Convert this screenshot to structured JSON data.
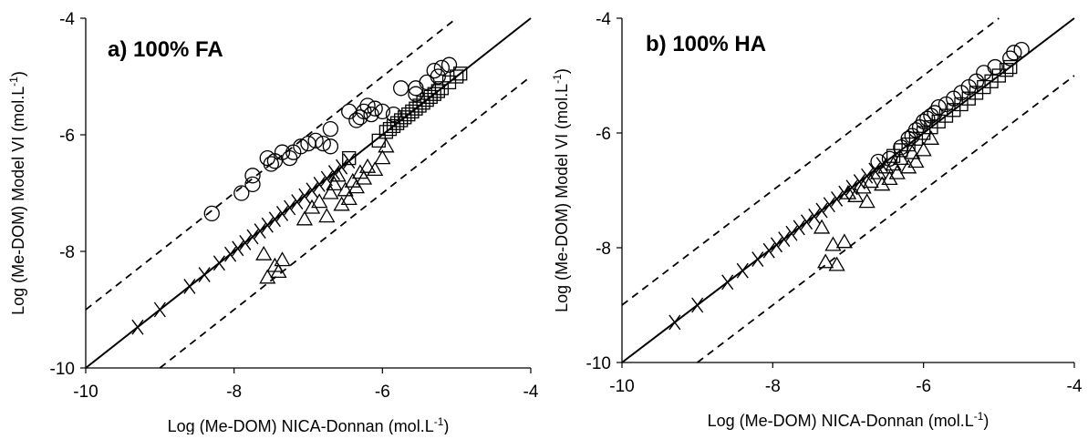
{
  "chart_data": [
    {
      "type": "scatter",
      "panel_label": "a) 100% FA",
      "xlabel": "Log (Me-DOM) NICA-Donnan (mol.L",
      "ylabel": "Log (Me-DOM) Model VI (mol.L",
      "unit_superscript": "-1",
      "unit_close": ")",
      "xlim": [
        -10,
        -4
      ],
      "ylim": [
        -10,
        -4
      ],
      "xticks": [
        -10,
        -8,
        -6,
        -4
      ],
      "yticks": [
        -10,
        -8,
        -6,
        -4
      ],
      "xtick_labels": [
        "-10",
        "-8",
        "-6",
        "-4"
      ],
      "ytick_labels": [
        "-10",
        "-8",
        "-6",
        "-4"
      ],
      "grid": false,
      "lines": [
        {
          "style": "solid",
          "x": [
            -10,
            -4
          ],
          "y": [
            -10,
            -4
          ]
        },
        {
          "style": "dashed",
          "x": [
            -10,
            -5
          ],
          "y": [
            -9,
            -4
          ]
        },
        {
          "style": "dashed",
          "x": [
            -9,
            -4
          ],
          "y": [
            -10,
            -5
          ]
        }
      ],
      "series": [
        {
          "marker": "circle",
          "points": [
            [
              -8.3,
              -7.35
            ],
            [
              -7.9,
              -7.0
            ],
            [
              -7.75,
              -6.85
            ],
            [
              -7.75,
              -6.7
            ],
            [
              -7.55,
              -6.4
            ],
            [
              -7.5,
              -6.5
            ],
            [
              -7.45,
              -6.45
            ],
            [
              -7.35,
              -6.3
            ],
            [
              -7.25,
              -6.4
            ],
            [
              -7.2,
              -6.3
            ],
            [
              -7.1,
              -6.2
            ],
            [
              -7.0,
              -6.15
            ],
            [
              -6.9,
              -6.1
            ],
            [
              -6.8,
              -6.15
            ],
            [
              -6.7,
              -6.2
            ],
            [
              -6.7,
              -5.9
            ],
            [
              -6.45,
              -5.6
            ],
            [
              -6.35,
              -5.75
            ],
            [
              -6.3,
              -5.7
            ],
            [
              -6.25,
              -5.6
            ],
            [
              -6.2,
              -5.5
            ],
            [
              -6.15,
              -5.65
            ],
            [
              -6.1,
              -5.55
            ],
            [
              -6.0,
              -5.6
            ],
            [
              -5.85,
              -5.65
            ],
            [
              -5.75,
              -5.2
            ],
            [
              -5.55,
              -5.3
            ],
            [
              -5.55,
              -5.2
            ],
            [
              -5.4,
              -5.1
            ],
            [
              -5.3,
              -4.9
            ],
            [
              -5.25,
              -5.0
            ],
            [
              -5.2,
              -4.85
            ],
            [
              -5.1,
              -4.8
            ]
          ]
        },
        {
          "marker": "square",
          "points": [
            [
              -6.45,
              -6.4
            ],
            [
              -6.05,
              -6.1
            ],
            [
              -5.95,
              -5.95
            ],
            [
              -5.9,
              -5.9
            ],
            [
              -5.85,
              -5.85
            ],
            [
              -5.8,
              -5.8
            ],
            [
              -5.75,
              -5.75
            ],
            [
              -5.7,
              -5.7
            ],
            [
              -5.65,
              -5.65
            ],
            [
              -5.6,
              -5.6
            ],
            [
              -5.55,
              -5.55
            ],
            [
              -5.5,
              -5.5
            ],
            [
              -5.45,
              -5.45
            ],
            [
              -5.4,
              -5.4
            ],
            [
              -5.35,
              -5.35
            ],
            [
              -5.3,
              -5.3
            ],
            [
              -5.25,
              -5.25
            ],
            [
              -5.2,
              -5.2
            ],
            [
              -5.1,
              -5.1
            ],
            [
              -5.0,
              -5.0
            ],
            [
              -4.95,
              -4.95
            ]
          ]
        },
        {
          "marker": "triangle",
          "points": [
            [
              -7.6,
              -8.05
            ],
            [
              -7.55,
              -8.45
            ],
            [
              -7.45,
              -8.25
            ],
            [
              -7.4,
              -8.35
            ],
            [
              -7.35,
              -8.15
            ],
            [
              -7.05,
              -7.45
            ],
            [
              -6.95,
              -7.25
            ],
            [
              -6.85,
              -7.15
            ],
            [
              -6.75,
              -7.4
            ],
            [
              -6.7,
              -7.0
            ],
            [
              -6.65,
              -6.85
            ],
            [
              -6.6,
              -6.7
            ],
            [
              -6.55,
              -7.2
            ],
            [
              -6.5,
              -6.95
            ],
            [
              -6.45,
              -7.1
            ],
            [
              -6.4,
              -6.8
            ],
            [
              -6.35,
              -6.9
            ],
            [
              -6.3,
              -6.65
            ],
            [
              -6.25,
              -6.75
            ],
            [
              -6.2,
              -6.55
            ],
            [
              -6.1,
              -6.6
            ],
            [
              -6.0,
              -6.4
            ],
            [
              -5.95,
              -6.2
            ]
          ]
        },
        {
          "marker": "cross",
          "points": [
            [
              -9.3,
              -9.3
            ],
            [
              -9.0,
              -9.0
            ],
            [
              -8.6,
              -8.6
            ],
            [
              -8.4,
              -8.4
            ],
            [
              -8.2,
              -8.2
            ],
            [
              -8.05,
              -8.05
            ],
            [
              -7.95,
              -7.95
            ],
            [
              -7.85,
              -7.85
            ],
            [
              -7.75,
              -7.75
            ],
            [
              -7.65,
              -7.65
            ],
            [
              -7.55,
              -7.55
            ],
            [
              -7.45,
              -7.45
            ],
            [
              -7.35,
              -7.35
            ],
            [
              -7.25,
              -7.25
            ],
            [
              -7.15,
              -7.15
            ],
            [
              -7.05,
              -7.05
            ],
            [
              -6.95,
              -6.95
            ],
            [
              -6.85,
              -6.85
            ],
            [
              -6.75,
              -6.75
            ],
            [
              -6.65,
              -6.65
            ],
            [
              -6.55,
              -6.55
            ],
            [
              -6.45,
              -6.45
            ]
          ]
        }
      ]
    },
    {
      "type": "scatter",
      "panel_label": "b) 100% HA",
      "xlabel": "Log (Me-DOM) NICA-Donnan (mol.L",
      "ylabel": "Log (Me-DOM) Model VI (mol.L",
      "unit_superscript": "-1",
      "unit_close": ")",
      "xlim": [
        -10,
        -4
      ],
      "ylim": [
        -10,
        -4
      ],
      "xticks": [
        -10,
        -8,
        -6,
        -4
      ],
      "yticks": [
        -10,
        -8,
        -6,
        -4
      ],
      "xtick_labels": [
        "-10",
        "-8",
        "-6",
        "-4"
      ],
      "ytick_labels": [
        "-10",
        "-8",
        "-6",
        "-4"
      ],
      "grid": false,
      "lines": [
        {
          "style": "solid",
          "x": [
            -10,
            -4
          ],
          "y": [
            -10,
            -4
          ]
        },
        {
          "style": "dashed",
          "x": [
            -10,
            -5
          ],
          "y": [
            -9,
            -4
          ]
        },
        {
          "style": "dashed",
          "x": [
            -9,
            -4
          ],
          "y": [
            -10,
            -5
          ]
        }
      ],
      "series": [
        {
          "marker": "circle",
          "points": [
            [
              -6.6,
              -6.5
            ],
            [
              -6.45,
              -6.45
            ],
            [
              -6.3,
              -6.25
            ],
            [
              -6.2,
              -6.1
            ],
            [
              -6.15,
              -6.05
            ],
            [
              -6.1,
              -5.95
            ],
            [
              -6.05,
              -5.9
            ],
            [
              -6.0,
              -5.8
            ],
            [
              -5.95,
              -5.75
            ],
            [
              -5.9,
              -5.7
            ],
            [
              -5.85,
              -5.65
            ],
            [
              -5.8,
              -5.55
            ],
            [
              -5.7,
              -5.5
            ],
            [
              -5.6,
              -5.4
            ],
            [
              -5.5,
              -5.3
            ],
            [
              -5.4,
              -5.2
            ],
            [
              -5.3,
              -5.1
            ],
            [
              -5.2,
              -4.95
            ],
            [
              -5.05,
              -4.85
            ],
            [
              -4.85,
              -4.7
            ],
            [
              -4.8,
              -4.6
            ],
            [
              -4.7,
              -4.55
            ]
          ]
        },
        {
          "marker": "square",
          "points": [
            [
              -6.4,
              -6.4
            ],
            [
              -6.3,
              -6.3
            ],
            [
              -6.2,
              -6.2
            ],
            [
              -6.1,
              -6.1
            ],
            [
              -6.0,
              -6.0
            ],
            [
              -5.9,
              -5.9
            ],
            [
              -5.8,
              -5.8
            ],
            [
              -5.7,
              -5.7
            ],
            [
              -5.6,
              -5.6
            ],
            [
              -5.5,
              -5.5
            ],
            [
              -5.4,
              -5.4
            ],
            [
              -5.3,
              -5.3
            ],
            [
              -5.2,
              -5.2
            ],
            [
              -5.1,
              -5.1
            ],
            [
              -5.0,
              -5.0
            ],
            [
              -4.9,
              -4.9
            ],
            [
              -4.85,
              -4.85
            ]
          ]
        },
        {
          "marker": "triangle",
          "points": [
            [
              -7.35,
              -7.65
            ],
            [
              -7.3,
              -8.25
            ],
            [
              -7.2,
              -7.95
            ],
            [
              -7.15,
              -8.3
            ],
            [
              -7.05,
              -7.9
            ],
            [
              -7.0,
              -7.05
            ],
            [
              -6.9,
              -7.1
            ],
            [
              -6.8,
              -6.95
            ],
            [
              -6.75,
              -7.2
            ],
            [
              -6.7,
              -6.85
            ],
            [
              -6.6,
              -6.7
            ],
            [
              -6.55,
              -6.9
            ],
            [
              -6.5,
              -6.6
            ],
            [
              -6.45,
              -6.8
            ],
            [
              -6.4,
              -6.55
            ],
            [
              -6.35,
              -6.7
            ],
            [
              -6.3,
              -6.45
            ],
            [
              -6.2,
              -6.6
            ],
            [
              -6.15,
              -6.35
            ],
            [
              -6.1,
              -6.5
            ],
            [
              -6.0,
              -6.3
            ],
            [
              -5.9,
              -6.1
            ]
          ]
        },
        {
          "marker": "cross",
          "points": [
            [
              -9.3,
              -9.3
            ],
            [
              -9.0,
              -9.0
            ],
            [
              -8.6,
              -8.6
            ],
            [
              -8.4,
              -8.4
            ],
            [
              -8.2,
              -8.2
            ],
            [
              -8.05,
              -8.05
            ],
            [
              -7.95,
              -7.95
            ],
            [
              -7.85,
              -7.85
            ],
            [
              -7.75,
              -7.75
            ],
            [
              -7.65,
              -7.65
            ],
            [
              -7.55,
              -7.55
            ],
            [
              -7.45,
              -7.45
            ],
            [
              -7.35,
              -7.35
            ],
            [
              -7.25,
              -7.25
            ],
            [
              -7.15,
              -7.15
            ],
            [
              -7.05,
              -7.05
            ],
            [
              -6.95,
              -6.95
            ],
            [
              -6.85,
              -6.85
            ],
            [
              -6.75,
              -6.75
            ],
            [
              -6.65,
              -6.65
            ],
            [
              -6.55,
              -6.55
            ]
          ]
        }
      ]
    }
  ]
}
